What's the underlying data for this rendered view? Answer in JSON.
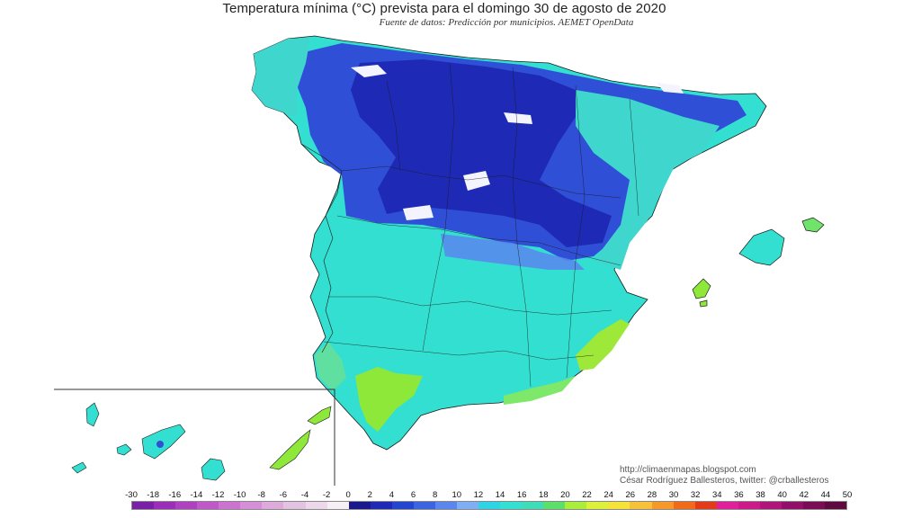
{
  "header": {
    "title": "Temperatura mínima (°C) prevista para el domingo 30 de agosto de 2020",
    "subtitle": "Fuente de datos: Predicción por municipios. AEMET OpenData"
  },
  "credits": {
    "blog": "http://climaenmapas.blogspot.com",
    "author": "César Rodríguez Ballesteros, twitter: @crballesteros"
  },
  "legend": {
    "ticks": [
      "-30",
      "-18",
      "-16",
      "-14",
      "-12",
      "-10",
      "-8",
      "-6",
      "-4",
      "-2",
      "0",
      "2",
      "4",
      "6",
      "8",
      "10",
      "12",
      "14",
      "16",
      "18",
      "20",
      "22",
      "24",
      "26",
      "28",
      "30",
      "32",
      "34",
      "36",
      "38",
      "40",
      "42",
      "44",
      "50"
    ],
    "colors": [
      "#7a1fa8",
      "#9b2db8",
      "#b03fc2",
      "#c158c9",
      "#cc73cf",
      "#d58fd6",
      "#dcaadb",
      "#e4c2e2",
      "#ecd8ea",
      "#f6f0f6",
      "#1a1a8c",
      "#1e2ab5",
      "#2544d0",
      "#3a64e0",
      "#5a86ee",
      "#80aef5",
      "#2fd3e3",
      "#33e0d2",
      "#3fdcb9",
      "#5ce06a",
      "#a8ee3a",
      "#ddf03a",
      "#f5e23a",
      "#f5c23a",
      "#f59a2a",
      "#f06a1a",
      "#e33a1a",
      "#e0209a",
      "#cc1a8a",
      "#b0157a",
      "#921068",
      "#7a0c55",
      "#5e0a40"
    ]
  },
  "map": {
    "colors": {
      "cold_deep": "#1e2ab5",
      "cold_mid": "#2f4fd6",
      "cold_light": "#5a86ee",
      "cyan": "#33e0d2",
      "cyan_light": "#4fe3d6",
      "teal": "#3fcfbe",
      "green": "#8ee83a",
      "snow": "#f4f4ff"
    }
  }
}
